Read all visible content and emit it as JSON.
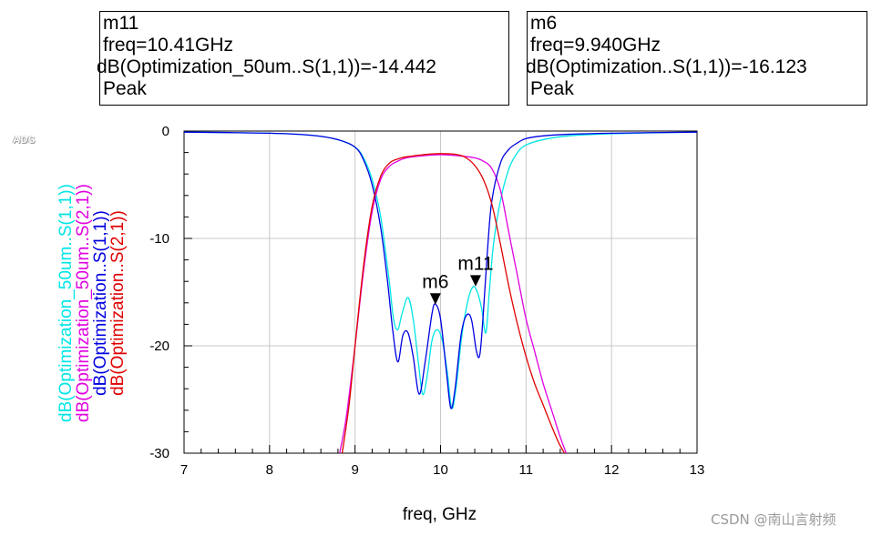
{
  "markers": [
    {
      "id": "m11",
      "name": "m11",
      "freq_line": "freq=10.41GHz",
      "expr_line": "dB(Optimization_50um..S(1,1))=-14.442",
      "mode": "Peak",
      "freq_ghz": 10.41,
      "value_db": -14.442
    },
    {
      "id": "m6",
      "name": "m6",
      "freq_line": "freq=9.940GHz",
      "expr_line": "dB(Optimization..S(1,1))=-16.123",
      "mode": "Peak",
      "freq_ghz": 9.94,
      "value_db": -16.123
    }
  ],
  "logo_text": "ADS",
  "watermark": "CSDN @南山言射频",
  "chart_data": {
    "type": "line",
    "title": "",
    "xlabel": "freq, GHz",
    "xlim": [
      7,
      13
    ],
    "ylim": [
      -30,
      0
    ],
    "xticks": [
      7,
      8,
      9,
      10,
      11,
      12,
      13
    ],
    "yticks": [
      0,
      -10,
      -20,
      -30
    ],
    "grid": true,
    "legend_placement": "left, vertical text",
    "series": [
      {
        "name": "dB(Optimization_50um..S(1,1))",
        "color": "#00e5e5",
        "x": [
          7.0,
          8.0,
          8.5,
          8.8,
          9.0,
          9.1,
          9.2,
          9.3,
          9.4,
          9.45,
          9.5,
          9.55,
          9.62,
          9.68,
          9.74,
          9.79,
          9.84,
          9.9,
          9.96,
          10.02,
          10.08,
          10.13,
          10.18,
          10.25,
          10.32,
          10.38,
          10.43,
          10.48,
          10.53,
          10.57,
          10.62,
          10.7,
          10.8,
          10.9,
          11.0,
          11.2,
          11.5,
          12.0,
          13.0
        ],
        "y": [
          -0.1,
          -0.2,
          -0.4,
          -0.8,
          -1.5,
          -2.5,
          -4.5,
          -8.0,
          -14.0,
          -17.5,
          -18.5,
          -17.0,
          -15.5,
          -17.5,
          -21.5,
          -24.5,
          -23.0,
          -19.5,
          -18.5,
          -19.5,
          -22.5,
          -25.8,
          -24.0,
          -19.0,
          -15.8,
          -14.5,
          -15.0,
          -16.5,
          -18.8,
          -15.0,
          -10.5,
          -6.5,
          -3.5,
          -2.0,
          -1.3,
          -0.8,
          -0.45,
          -0.25,
          -0.1
        ]
      },
      {
        "name": "dB(Optimization_50um..S(2,1))",
        "color": "#e000e0",
        "x": [
          8.82,
          8.9,
          9.0,
          9.1,
          9.2,
          9.3,
          9.4,
          9.5,
          9.6,
          9.8,
          10.0,
          10.2,
          10.4,
          10.5,
          10.6,
          10.7,
          10.8,
          10.9,
          11.0,
          11.1,
          11.2,
          11.3,
          11.4,
          11.47
        ],
        "y": [
          -30.0,
          -26.5,
          -20.0,
          -13.0,
          -7.5,
          -4.5,
          -3.3,
          -2.8,
          -2.5,
          -2.3,
          -2.2,
          -2.3,
          -2.5,
          -2.8,
          -3.5,
          -5.5,
          -9.5,
          -13.5,
          -17.5,
          -20.5,
          -23.5,
          -26.0,
          -28.5,
          -30.0
        ]
      },
      {
        "name": "dB(Optimization..S(1,1))",
        "color": "#0000e0",
        "x": [
          7.0,
          8.0,
          8.5,
          8.8,
          9.0,
          9.1,
          9.2,
          9.3,
          9.38,
          9.44,
          9.5,
          9.56,
          9.62,
          9.68,
          9.75,
          9.82,
          9.9,
          9.94,
          10.0,
          10.07,
          10.12,
          10.17,
          10.24,
          10.3,
          10.36,
          10.42,
          10.46,
          10.5,
          10.55,
          10.6,
          10.7,
          10.8,
          10.9,
          11.0,
          11.2,
          11.5,
          12.0,
          13.0
        ],
        "y": [
          -0.1,
          -0.2,
          -0.4,
          -0.8,
          -1.5,
          -2.7,
          -5.0,
          -9.0,
          -14.0,
          -18.5,
          -21.5,
          -19.0,
          -18.8,
          -21.0,
          -24.5,
          -21.5,
          -17.0,
          -16.12,
          -17.5,
          -22.5,
          -25.8,
          -24.0,
          -19.0,
          -17.2,
          -17.5,
          -20.5,
          -20.8,
          -17.0,
          -11.0,
          -6.5,
          -3.0,
          -1.7,
          -1.1,
          -0.7,
          -0.45,
          -0.3,
          -0.2,
          -0.1
        ]
      },
      {
        "name": "dB(Optimization..S(2,1))",
        "color": "#e00000",
        "x": [
          8.85,
          8.93,
          9.0,
          9.1,
          9.2,
          9.3,
          9.4,
          9.5,
          9.6,
          9.8,
          10.0,
          10.2,
          10.3,
          10.4,
          10.5,
          10.6,
          10.7,
          10.8,
          10.9,
          11.0,
          11.1,
          11.2,
          11.3,
          11.38,
          11.45
        ],
        "y": [
          -30.0,
          -25.5,
          -20.0,
          -12.5,
          -7.0,
          -4.2,
          -3.0,
          -2.6,
          -2.4,
          -2.2,
          -2.1,
          -2.2,
          -2.5,
          -3.2,
          -4.5,
          -6.8,
          -10.5,
          -14.5,
          -18.0,
          -21.0,
          -23.5,
          -25.5,
          -27.5,
          -29.0,
          -30.0
        ]
      }
    ],
    "marker_points": [
      {
        "name": "m6",
        "x": 9.94,
        "y": -16.123
      },
      {
        "name": "m11",
        "x": 10.41,
        "y": -14.442
      }
    ]
  }
}
